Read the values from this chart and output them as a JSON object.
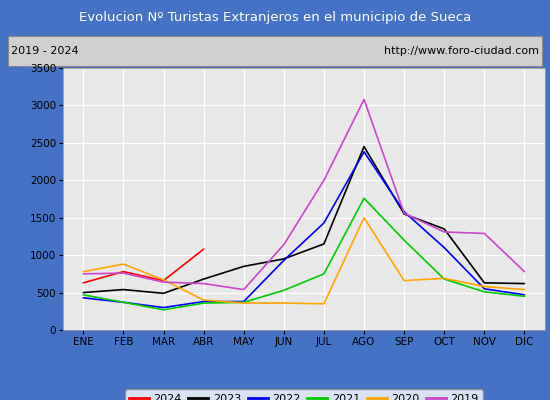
{
  "title": "Evolucion Nº Turistas Extranjeros en el municipio de Sueca",
  "title_color": "#ffffff",
  "title_bg_color": "#4472c4",
  "subtitle_left": "2019 - 2024",
  "subtitle_right": "http://www.foro-ciudad.com",
  "months": [
    "ENE",
    "FEB",
    "MAR",
    "ABR",
    "MAY",
    "JUN",
    "JUL",
    "AGO",
    "SEP",
    "OCT",
    "NOV",
    "DIC"
  ],
  "ylim": [
    0,
    3500
  ],
  "yticks": [
    0,
    500,
    1000,
    1500,
    2000,
    2500,
    3000,
    3500
  ],
  "series": {
    "2024": {
      "color": "#ff0000",
      "data": [
        630,
        780,
        660,
        1080,
        null,
        null,
        null,
        null,
        null,
        null,
        null,
        null
      ]
    },
    "2023": {
      "color": "#000000",
      "data": [
        500,
        540,
        490,
        680,
        850,
        950,
        1150,
        2450,
        1550,
        1350,
        630,
        620
      ]
    },
    "2022": {
      "color": "#0000ff",
      "data": [
        430,
        370,
        300,
        380,
        380,
        930,
        1430,
        2380,
        1580,
        1100,
        550,
        470
      ]
    },
    "2021": {
      "color": "#00cc00",
      "data": [
        470,
        370,
        270,
        360,
        370,
        530,
        750,
        1760,
        1200,
        680,
        510,
        450
      ]
    },
    "2020": {
      "color": "#ffa500",
      "data": [
        780,
        880,
        670,
        400,
        360,
        360,
        350,
        1500,
        660,
        690,
        580,
        540
      ]
    },
    "2019": {
      "color": "#cc44cc",
      "data": [
        750,
        760,
        640,
        620,
        540,
        1140,
        2000,
        3080,
        1560,
        1310,
        1290,
        780
      ]
    }
  },
  "legend_order": [
    "2024",
    "2023",
    "2022",
    "2021",
    "2020",
    "2019"
  ],
  "bg_color": "#e8e8e8",
  "plot_bg_color": "#e8e8e8",
  "grid_color": "#ffffff",
  "outer_bg_color": "#4472c4",
  "subtitle_bg": "#d0d0d0"
}
